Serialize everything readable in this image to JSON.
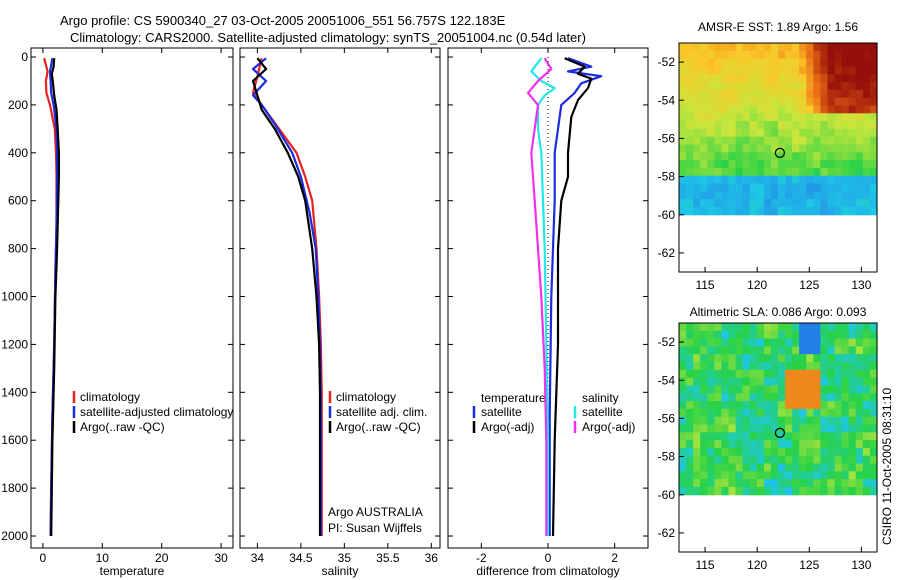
{
  "header": {
    "line1": "Argo profile: CS 5900340_27 03-Oct-2005 20051006_551 56.757S 122.183E",
    "line2": "Climatology: CARS2000. Satellite-adjusted climatology: synTS_20051004.nc (0.54d later)"
  },
  "colors": {
    "climatology": "#e82020",
    "satellite": "#1a2be0",
    "argo": "#000000",
    "sat_diff_salinity": "#22e8e8",
    "argo_diff_salinity": "#f030f0"
  },
  "watermark": "CSIRO 11-Oct-2005 08:31:10",
  "chart_data": [
    {
      "id": "temperature",
      "type": "line",
      "xlabel": "temperature",
      "xlim": [
        -2,
        32
      ],
      "xticks": [
        "0",
        "10",
        "20",
        "30"
      ],
      "xtick_values": [
        0,
        10,
        20,
        30
      ],
      "ylim": [
        2050,
        0
      ],
      "yticks": [
        "0",
        "200",
        "400",
        "600",
        "800",
        "1000",
        "1200",
        "1400",
        "1600",
        "1800",
        "2000"
      ],
      "ytick_values": [
        0,
        200,
        400,
        600,
        800,
        1000,
        1200,
        1400,
        1600,
        1800,
        2000
      ],
      "legend": [
        "climatology",
        "satellite-adjusted climatology",
        "Argo(..raw -QC)"
      ],
      "series": [
        {
          "name": "climatology",
          "color_key": "climatology",
          "points": [
            [
              0.2,
              5
            ],
            [
              0.8,
              60
            ],
            [
              0.5,
              100
            ],
            [
              0.6,
              150
            ],
            [
              1.2,
              200
            ],
            [
              2.0,
              300
            ],
            [
              2.2,
              400
            ],
            [
              2.3,
              500
            ],
            [
              2.3,
              700
            ],
            [
              2.1,
              900
            ],
            [
              1.9,
              1200
            ],
            [
              1.6,
              1500
            ],
            [
              1.4,
              1800
            ],
            [
              1.3,
              2000
            ]
          ]
        },
        {
          "name": "satellite-adjusted climatology",
          "color_key": "satellite",
          "points": [
            [
              1.6,
              5
            ],
            [
              1.2,
              60
            ],
            [
              1.3,
              100
            ],
            [
              1.4,
              150
            ],
            [
              1.8,
              200
            ],
            [
              2.3,
              300
            ],
            [
              2.4,
              400
            ],
            [
              2.4,
              500
            ],
            [
              2.3,
              700
            ],
            [
              2.1,
              900
            ],
            [
              1.9,
              1200
            ],
            [
              1.6,
              1500
            ],
            [
              1.4,
              1800
            ],
            [
              1.3,
              2000
            ]
          ]
        },
        {
          "name": "Argo(..raw -QC)",
          "color_key": "argo",
          "points": [
            [
              1.9,
              5
            ],
            [
              1.8,
              40
            ],
            [
              1.5,
              70
            ],
            [
              1.7,
              110
            ],
            [
              1.9,
              160
            ],
            [
              2.3,
              220
            ],
            [
              2.5,
              300
            ],
            [
              2.7,
              400
            ],
            [
              2.7,
              500
            ],
            [
              2.6,
              600
            ],
            [
              2.4,
              800
            ],
            [
              2.1,
              1000
            ],
            [
              1.9,
              1300
            ],
            [
              1.6,
              1600
            ],
            [
              1.5,
              1800
            ],
            [
              1.4,
              2000
            ]
          ]
        }
      ]
    },
    {
      "id": "salinity",
      "type": "line",
      "xlabel": "salinity",
      "xlim": [
        33.8,
        36.1
      ],
      "xticks": [
        "34",
        "34.5",
        "35",
        "35.5",
        "36"
      ],
      "xtick_values": [
        34,
        34.5,
        35,
        35.5,
        36
      ],
      "ylim": [
        2050,
        0
      ],
      "yticks": [
        "0",
        "200",
        "400",
        "600",
        "800",
        "1000",
        "1200",
        "1400",
        "1600",
        "1800",
        "2000"
      ],
      "ytick_values": [
        0,
        200,
        400,
        600,
        800,
        1000,
        1200,
        1400,
        1600,
        1800,
        2000
      ],
      "legend": [
        "climatology",
        "satellite adj. clim.",
        "Argo(..raw -QC)"
      ],
      "annotations": [
        "Argo AUSTRALIA",
        "PI: Susan Wijffels"
      ],
      "series": [
        {
          "name": "climatology",
          "color_key": "climatology",
          "points": [
            [
              34.05,
              5
            ],
            [
              34.0,
              80
            ],
            [
              33.95,
              150
            ],
            [
              34.05,
              200
            ],
            [
              34.25,
              300
            ],
            [
              34.45,
              400
            ],
            [
              34.55,
              500
            ],
            [
              34.63,
              600
            ],
            [
              34.68,
              800
            ],
            [
              34.71,
              1000
            ],
            [
              34.73,
              1200
            ],
            [
              34.74,
              1400
            ],
            [
              34.74,
              1600
            ],
            [
              34.74,
              2000
            ]
          ]
        },
        {
          "name": "satellite adj. clim.",
          "color_key": "satellite",
          "points": [
            [
              34.1,
              5
            ],
            [
              33.95,
              50
            ],
            [
              34.1,
              100
            ],
            [
              33.95,
              160
            ],
            [
              34.05,
              200
            ],
            [
              34.2,
              280
            ],
            [
              34.4,
              400
            ],
            [
              34.5,
              500
            ],
            [
              34.6,
              650
            ],
            [
              34.67,
              800
            ],
            [
              34.7,
              1000
            ],
            [
              34.72,
              1200
            ],
            [
              34.73,
              1500
            ],
            [
              34.73,
              2000
            ]
          ]
        },
        {
          "name": "Argo(..raw -QC)",
          "color_key": "argo",
          "points": [
            [
              34.0,
              5
            ],
            [
              34.1,
              50
            ],
            [
              33.95,
              100
            ],
            [
              34.0,
              160
            ],
            [
              34.05,
              220
            ],
            [
              34.2,
              300
            ],
            [
              34.35,
              400
            ],
            [
              34.47,
              500
            ],
            [
              34.55,
              600
            ],
            [
              34.63,
              800
            ],
            [
              34.68,
              1000
            ],
            [
              34.71,
              1200
            ],
            [
              34.72,
              1400
            ],
            [
              34.72,
              2000
            ]
          ]
        }
      ]
    },
    {
      "id": "difference",
      "type": "line",
      "xlabel": "difference from climatology",
      "xlim": [
        -3,
        3
      ],
      "xticks": [
        "-2",
        "0",
        "2"
      ],
      "xtick_values": [
        -2,
        0,
        2
      ],
      "ylim": [
        2050,
        0
      ],
      "yticks": [
        "0",
        "200",
        "400",
        "600",
        "800",
        "1000",
        "1200",
        "1400",
        "1600",
        "1800",
        "2000"
      ],
      "ytick_values": [
        0,
        200,
        400,
        600,
        800,
        1000,
        1200,
        1400,
        1600,
        1800,
        2000
      ],
      "legend_title_left": "temperature",
      "legend_title_right": "salinity",
      "legend_left": [
        "satellite",
        "Argo(-adj)"
      ],
      "legend_right": [
        "satellite",
        "Argo(-adj)"
      ],
      "series": [
        {
          "name": "temperature satellite",
          "color_key": "satellite",
          "points": [
            [
              0.6,
              5
            ],
            [
              1.3,
              40
            ],
            [
              0.6,
              60
            ],
            [
              1.6,
              80
            ],
            [
              1.0,
              110
            ],
            [
              0.8,
              150
            ],
            [
              0.4,
              200
            ],
            [
              0.3,
              300
            ],
            [
              0.2,
              400
            ],
            [
              0.2,
              600
            ],
            [
              0.15,
              800
            ],
            [
              0.1,
              1000
            ],
            [
              0.05,
              1500
            ],
            [
              0.05,
              2000
            ]
          ]
        },
        {
          "name": "temperature Argo(-adj)",
          "color_key": "argo",
          "points": [
            [
              0.5,
              5
            ],
            [
              1.1,
              40
            ],
            [
              0.9,
              70
            ],
            [
              1.3,
              90
            ],
            [
              1.2,
              130
            ],
            [
              0.9,
              180
            ],
            [
              0.7,
              250
            ],
            [
              0.6,
              400
            ],
            [
              0.6,
              500
            ],
            [
              0.4,
              600
            ],
            [
              0.3,
              800
            ],
            [
              0.3,
              1200
            ],
            [
              0.2,
              1600
            ],
            [
              0.15,
              2000
            ]
          ]
        },
        {
          "name": "salinity satellite",
          "color_key": "sat_diff_salinity",
          "points": [
            [
              -0.2,
              5
            ],
            [
              -0.5,
              60
            ],
            [
              -0.2,
              100
            ],
            [
              0.2,
              130
            ],
            [
              -0.1,
              160
            ],
            [
              -0.3,
              200
            ],
            [
              -0.3,
              300
            ],
            [
              -0.2,
              400
            ],
            [
              -0.15,
              600
            ],
            [
              -0.1,
              800
            ],
            [
              -0.05,
              1200
            ],
            [
              0.0,
              1600
            ],
            [
              0.0,
              2000
            ]
          ]
        },
        {
          "name": "salinity Argo(-adj)",
          "color_key": "argo_diff_salinity",
          "points": [
            [
              -0.1,
              5
            ],
            [
              0.1,
              50
            ],
            [
              -0.3,
              100
            ],
            [
              -0.6,
              150
            ],
            [
              -0.3,
              200
            ],
            [
              -0.4,
              300
            ],
            [
              -0.5,
              400
            ],
            [
              -0.4,
              600
            ],
            [
              -0.3,
              800
            ],
            [
              -0.2,
              1000
            ],
            [
              -0.1,
              1300
            ],
            [
              -0.05,
              1600
            ],
            [
              -0.05,
              2000
            ]
          ]
        }
      ]
    },
    {
      "id": "sst_map",
      "type": "heatmap",
      "title": "AMSR-E SST: 1.89  Argo: 1.56",
      "xlim": [
        112.5,
        131.5
      ],
      "ylim": [
        -63,
        -51
      ],
      "xticks": [
        "115",
        "120",
        "125",
        "130"
      ],
      "xtick_values": [
        115,
        120,
        125,
        130
      ],
      "yticks": [
        "-52",
        "-54",
        "-56",
        "-58",
        "-60",
        "-62"
      ],
      "ytick_values": [
        -52,
        -54,
        -56,
        -58,
        -60,
        -62
      ],
      "data_lat_range": [
        -60,
        -51
      ],
      "marker": {
        "lon": 122.183,
        "lat": -56.757
      }
    },
    {
      "id": "sla_map",
      "type": "heatmap",
      "title": "Altimetric SLA: 0.086  Argo: 0.093",
      "xlim": [
        112.5,
        131.5
      ],
      "ylim": [
        -63,
        -51
      ],
      "xticks": [
        "115",
        "120",
        "125",
        "130"
      ],
      "xtick_values": [
        115,
        120,
        125,
        130
      ],
      "yticks": [
        "-52",
        "-54",
        "-56",
        "-58",
        "-60",
        "-62"
      ],
      "ytick_values": [
        -52,
        -54,
        -56,
        -58,
        -60,
        -62
      ],
      "data_lat_range": [
        -60,
        -51
      ],
      "marker": {
        "lon": 122.183,
        "lat": -56.757
      }
    }
  ]
}
